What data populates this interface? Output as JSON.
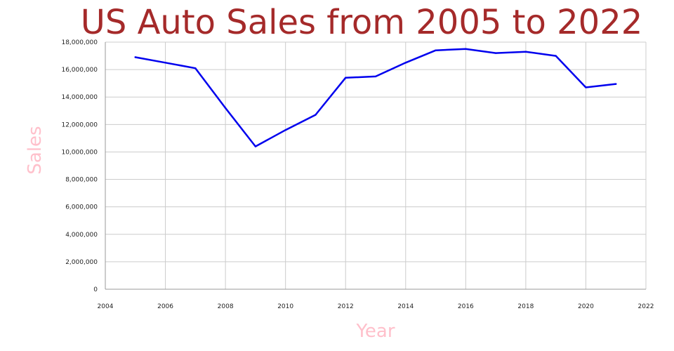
{
  "chart_data": {
    "type": "line",
    "title": "US Auto Sales from 2005 to 2022",
    "xlabel": "Year",
    "ylabel": "Sales",
    "xlim": [
      2004,
      2022
    ],
    "ylim": [
      0,
      18000000
    ],
    "x_ticks": [
      2004,
      2006,
      2008,
      2010,
      2012,
      2014,
      2016,
      2018,
      2020,
      2022
    ],
    "y_ticks": [
      0,
      2000000,
      4000000,
      6000000,
      8000000,
      10000000,
      12000000,
      14000000,
      16000000,
      18000000
    ],
    "grid": true,
    "legend": "none",
    "colors": {
      "line": "#0000ee",
      "title": "#a52a2a",
      "axis_labels": "#ffc0cb",
      "grid": "#cccccc"
    },
    "series": [
      {
        "x": [
          2005,
          2006,
          2007,
          2008,
          2009,
          2010,
          2011,
          2012,
          2013,
          2014,
          2015,
          2016,
          2017,
          2018,
          2019,
          2020,
          2021
        ],
        "values": [
          16900000,
          16500000,
          16100000,
          13200000,
          10400000,
          11600000,
          12700000,
          15400000,
          15500000,
          16500000,
          17400000,
          17500000,
          17200000,
          17300000,
          17000000,
          14700000,
          14950000
        ]
      }
    ]
  }
}
